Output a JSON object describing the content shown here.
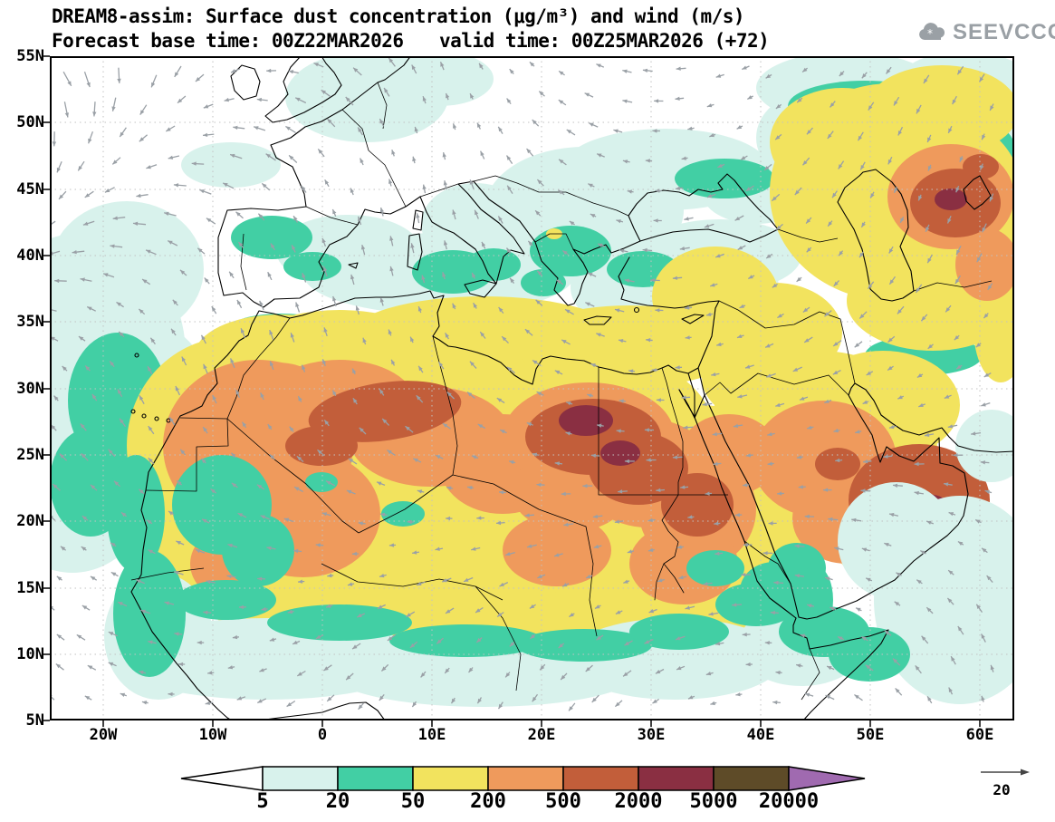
{
  "header": {
    "title": "DREAM8-assim: Surface dust concentration (μg/m³) and wind (m/s)",
    "forecast_base": "Forecast base time: 00Z22MAR2026",
    "valid_time": "valid time: 00Z25MAR2026 (+72)",
    "logo_text": "SEEVCCC"
  },
  "map": {
    "y_ticks": [
      "55N",
      "50N",
      "45N",
      "40N",
      "35N",
      "30N",
      "25N",
      "20N",
      "15N",
      "10N",
      "5N"
    ],
    "x_ticks": [
      "20W",
      "10W",
      "0",
      "10E",
      "20E",
      "30E",
      "40E",
      "50E",
      "60E"
    ],
    "wind_color": "#9aa0a6",
    "grid_color": "#c2c2c2",
    "coast_color": "#000000"
  },
  "legend": {
    "values": [
      "5",
      "20",
      "50",
      "200",
      "500",
      "2000",
      "5000",
      "20000"
    ],
    "colors": [
      "#ffffff",
      "#d8f2ec",
      "#42cfa4",
      "#f2e35e",
      "#ef9a5c",
      "#c25e3a",
      "#8a2f42",
      "#5e4b28",
      "#a06ab0"
    ],
    "wind_ref_label": "20"
  }
}
